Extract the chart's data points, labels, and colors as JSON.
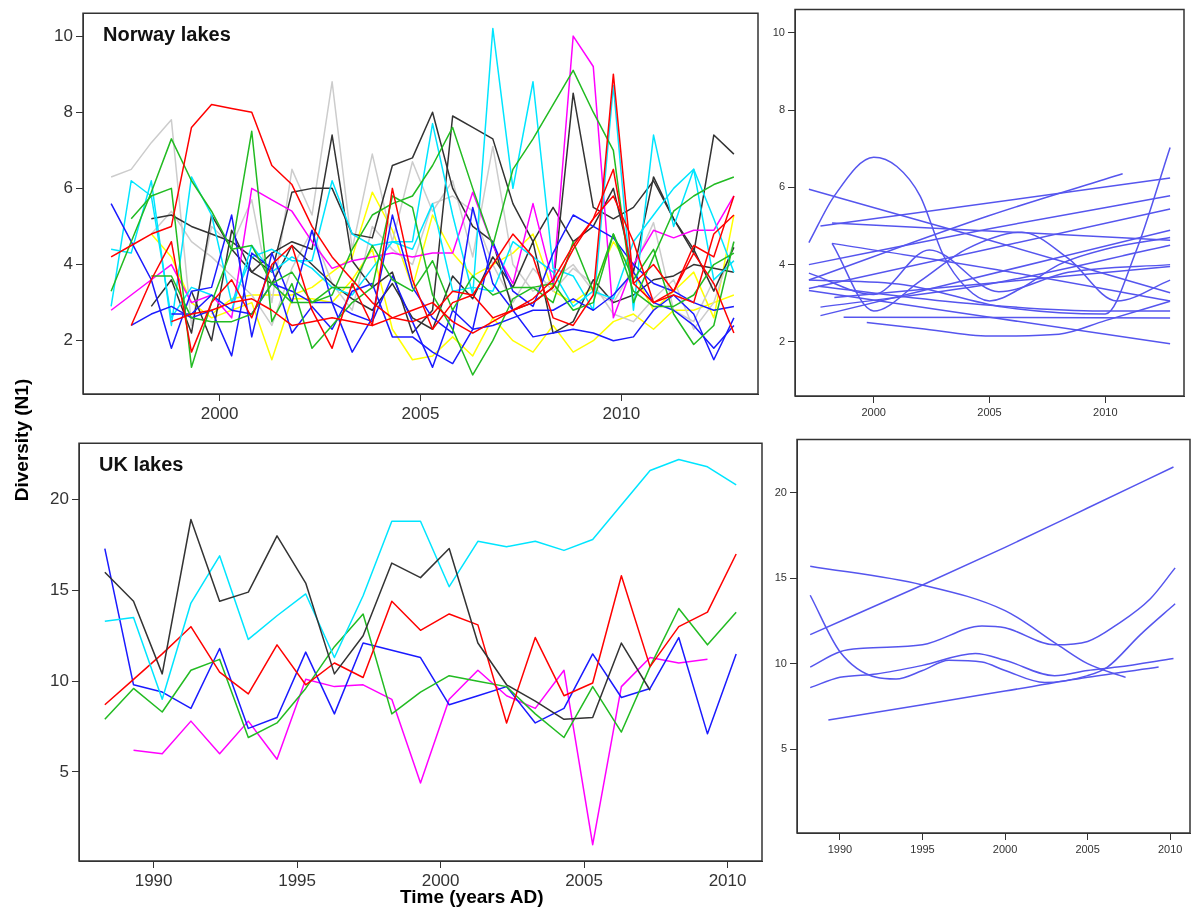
{
  "chart_data": [
    {
      "type": "line",
      "title": "Norway lakes",
      "ylabel": "Diversity (N1)",
      "xlim": [
        1996.6,
        2013.4
      ],
      "ylim": [
        0.6,
        10.6
      ],
      "xticks": [
        2000,
        2005,
        2010
      ],
      "yticks": [
        2,
        4,
        6,
        8,
        10
      ],
      "x": [
        1997.3,
        1997.8,
        1998.3,
        1998.8,
        1999.3,
        1999.8,
        2000.3,
        2000.8,
        2001.3,
        2001.8,
        2002.3,
        2002.8,
        2003.3,
        2003.8,
        2004.3,
        2004.8,
        2005.3,
        2005.8,
        2006.3,
        2006.8,
        2007.3,
        2007.8,
        2008.3,
        2008.8,
        2009.3,
        2009.8,
        2010.3,
        2010.8,
        2011.3,
        2011.8,
        2012.3,
        2012.8
      ],
      "series": [
        {
          "color": "#ff0000",
          "values": [
            4.2,
            4.5,
            4.8,
            5.0,
            7.6,
            8.2,
            8.1,
            8.0,
            6.6,
            6.1,
            5.0,
            4.2,
            3.6,
            3.0,
            2.6,
            2.5,
            2.7,
            3.3,
            3.2,
            2.6,
            2.8,
            3.0,
            3.4,
            4.4,
            5.2,
            6.5,
            3.5,
            3.0,
            3.3,
            4.5,
            4.2,
            5.8
          ]
        },
        {
          "color": "#ff0000",
          "values": [
            null,
            2.4,
            3.6,
            4.6,
            1.7,
            3.0,
            3.6,
            2.6,
            4.0,
            4.5,
            2.8,
            1.8,
            3.5,
            2.4,
            6.0,
            3.6,
            2.3,
            3.0,
            3.2,
            4.0,
            4.8,
            4.2,
            2.6,
            2.4,
            3.2,
            9.0,
            3.5,
            4.0,
            3.3,
            4.3,
            3.5,
            2.2
          ]
        },
        {
          "color": "#ff0000",
          "values": [
            null,
            null,
            null,
            2.5,
            2.7,
            2.8,
            3.0,
            3.1,
            2.8,
            2.4,
            2.5,
            2.6,
            2.5,
            2.4,
            2.6,
            2.8,
            3.0,
            2.5,
            2.2,
            2.5,
            2.8,
            3.1,
            3.6,
            4.5,
            5.2,
            5.8,
            4.6,
            3.0,
            3.2,
            3.0,
            4.8,
            5.3
          ]
        },
        {
          "color": "#22bb22",
          "values": [
            3.3,
            4.6,
            5.9,
            7.3,
            6.2,
            5.4,
            4.4,
            4.5,
            3.5,
            3.8,
            3.0,
            3.2,
            4.4,
            5.3,
            5.6,
            5.8,
            6.6,
            7.6,
            6.0,
            4.5,
            6.5,
            7.3,
            8.2,
            9.1,
            8.0,
            7.0,
            3.0,
            4.2,
            5.4,
            5.8,
            6.1,
            6.3
          ]
        },
        {
          "color": "#22bb22",
          "values": [
            null,
            5.2,
            5.8,
            6.0,
            1.3,
            3.0,
            4.4,
            7.5,
            2.5,
            3.5,
            1.8,
            2.4,
            3.0,
            3.4,
            5.8,
            5.5,
            3.2,
            2.3,
            1.1,
            2.0,
            3.1,
            3.4,
            3.0,
            4.6,
            3.3,
            4.8,
            3.6,
            4.4,
            2.7,
            1.9,
            2.4,
            4.6
          ]
        },
        {
          "color": "#22bb22",
          "values": [
            null,
            null,
            3.7,
            3.7,
            2.6,
            2.5,
            2.5,
            2.7,
            3.5,
            3.0,
            3.0,
            3.4,
            3.4,
            4.5,
            3.6,
            3.3,
            4.1,
            2.8,
            3.7,
            3.2,
            3.4,
            3.4,
            3.5,
            2.8,
            3.0,
            4.8,
            3.3,
            2.9,
            2.9,
            3.2,
            4.0,
            4.3
          ]
        },
        {
          "color": "#1a1aff",
          "values": [
            5.6,
            4.6,
            3.6,
            1.8,
            3.3,
            3.4,
            5.3,
            2.1,
            4.3,
            3.0,
            4.9,
            3.0,
            1.7,
            2.6,
            5.3,
            3.4,
            2.6,
            2.2,
            5.5,
            3.5,
            2.8,
            2.1,
            2.2,
            2.3,
            2.2,
            2.0,
            2.1,
            2.8,
            3.2,
            2.7,
            1.5,
            2.6
          ]
        },
        {
          "color": "#1a1aff",
          "values": [
            null,
            2.4,
            2.7,
            2.9,
            2.6,
            2.8,
            1.6,
            4.3,
            3.9,
            2.2,
            2.9,
            2.3,
            3.3,
            3.5,
            2.1,
            2.1,
            1.7,
            1.4,
            2.3,
            4.6,
            3.3,
            2.9,
            4.3,
            5.3,
            5.0,
            4.7,
            4.0,
            3.5,
            3.3,
            3.0,
            2.8,
            2.9
          ]
        },
        {
          "color": "#1a1aff",
          "values": [
            null,
            null,
            null,
            2.7,
            2.7,
            3.2,
            2.8,
            2.7,
            3.5,
            3.3,
            3.0,
            3.0,
            2.7,
            2.5,
            3.7,
            2.5,
            1.3,
            2.8,
            2.3,
            2.4,
            2.6,
            2.8,
            2.8,
            3.1,
            2.8,
            3.2,
            3.8,
            3.0,
            2.8,
            2.4,
            1.8,
            2.4
          ]
        },
        {
          "color": "#00e5ff",
          "values": [
            4.4,
            4.3,
            6.2,
            2.4,
            6.3,
            5.3,
            3.0,
            4.2,
            4.4,
            4.1,
            4.1,
            6.2,
            4.8,
            4.5,
            4.6,
            4.6,
            7.7,
            5.3,
            3.2,
            10.2,
            6.0,
            8.8,
            3.9,
            3.7,
            2.8,
            8.7,
            2.8,
            7.4,
            5.0,
            6.5,
            3.6,
            4.1
          ]
        },
        {
          "color": "#00e5ff",
          "values": [
            2.9,
            6.2,
            5.8,
            2.6,
            3.4,
            3.2,
            2.8,
            4.5,
            3.8,
            4.2,
            3.9,
            3.4,
            3.2,
            3.9,
            4.6,
            4.4,
            5.6,
            3.3,
            3.4,
            3.3,
            4.6,
            4.2,
            3.8,
            2.9,
            3.3,
            3.1,
            4.6,
            5.3,
            6.0,
            6.5,
            5.2,
            3.8
          ]
        },
        {
          "color": "#ff00ff",
          "values": [
            2.8,
            3.2,
            3.6,
            4.0,
            3.0,
            3.2,
            2.6,
            6.0,
            5.7,
            5.4,
            4.6,
            3.9,
            4.1,
            4.2,
            4.3,
            4.2,
            4.3,
            4.3,
            5.9,
            4.5,
            3.5,
            5.6,
            3.5,
            10.0,
            9.2,
            2.6,
            4.0,
            4.9,
            4.7,
            4.9,
            4.9,
            5.8
          ]
        },
        {
          "color": "#333333",
          "values": [
            null,
            null,
            5.2,
            5.3,
            5.0,
            4.8,
            4.6,
            4.2,
            3.8,
            5.9,
            6.0,
            6.0,
            4.8,
            4.7,
            6.6,
            6.8,
            8.0,
            6.0,
            5.0,
            4.6,
            2.8,
            3.0,
            3.4,
            8.5,
            5.5,
            5.2,
            5.5,
            6.2,
            5.2,
            4.4,
            3.3,
            4.45
          ]
        },
        {
          "color": "#333333",
          "values": [
            null,
            null,
            2.9,
            3.6,
            2.2,
            5.3,
            4.4,
            3.8,
            4.3,
            4.6,
            4.4,
            7.4,
            4.1,
            3.4,
            3.8,
            2.2,
            2.8,
            7.9,
            7.6,
            7.3,
            5.6,
            4.6,
            5.5,
            4.6,
            5.0,
            6.0,
            3.8,
            6.3,
            5.2,
            4.3,
            7.4,
            6.9
          ]
        },
        {
          "color": "#333333",
          "values": [
            null,
            null,
            null,
            null,
            3.3,
            2.0,
            4.9,
            3.8,
            3.5,
            4.5,
            4.0,
            3.5,
            3.1,
            2.8,
            3.5,
            2.6,
            2.3,
            3.7,
            3.1,
            4.2,
            3.4,
            4.6,
            2.2,
            2.5,
            3.6,
            3.0,
            3.2,
            3.6,
            3.7,
            4.0,
            3.9,
            3.8
          ]
        },
        {
          "color": "#cccccc",
          "values": [
            6.3,
            6.5,
            7.2,
            7.8,
            2.4,
            5.0,
            4.5,
            5.7,
            3.0,
            6.5,
            5.3,
            8.8,
            4.4,
            6.9,
            4.6,
            6.7,
            5.4,
            6.2,
            4.2,
            7.1,
            4.0,
            3.3,
            3.6,
            4.0,
            3.3,
            3.0,
            3.9,
            5.1,
            2.8,
            2.5,
            3.6,
            4.1
          ]
        },
        {
          "color": "#cccccc",
          "values": [
            null,
            null,
            4.8,
            5.4,
            4.6,
            4.2,
            3.7,
            3.2,
            2.4,
            3.9,
            4.9,
            3.5,
            2.8,
            5.0,
            4.4,
            4.0,
            5.6,
            5.8,
            5.4,
            4.0,
            3.0,
            3.9,
            3.3,
            3.9,
            3.5,
            2.7,
            2.5,
            3.1,
            3.6,
            2.3,
            3.0,
            4.6
          ]
        },
        {
          "color": "#ffff00",
          "values": [
            null,
            null,
            4.8,
            4.2,
            3.0,
            2.6,
            2.8,
            3.0,
            1.5,
            3.1,
            3.1,
            3.0,
            3.6,
            4.4,
            2.3,
            1.5,
            1.6,
            2.1,
            1.6,
            2.6,
            2.0,
            1.7,
            2.4,
            1.7,
            2.0,
            2.5,
            2.7,
            2.3,
            2.8,
            2.8,
            3.0,
            3.2
          ]
        },
        {
          "color": "#ffff00",
          "values": [
            null,
            null,
            null,
            null,
            null,
            2.7,
            3.1,
            3.2,
            3.2,
            3.2,
            3.4,
            3.8,
            4.2,
            5.9,
            4.9,
            3.4,
            5.3,
            4.3,
            3.7,
            4.0,
            4.3,
            4.8,
            3.3,
            3.0,
            3.4,
            4.6,
            3.8,
            2.8,
            3.3,
            3.8,
            2.6,
            5.3
          ]
        }
      ]
    },
    {
      "type": "line",
      "xlim": [
        1996.6,
        2013.4
      ],
      "ylim": [
        0.6,
        10.6
      ],
      "xticks": [
        2000,
        2005,
        2010
      ],
      "yticks": [
        2,
        4,
        6,
        8,
        10
      ],
      "series": [
        {
          "color": "#5555ee",
          "x": [
            1997.2,
            1998.3,
            2000,
            2001,
            2002,
            2003,
            2004,
            2005,
            2006.4,
            2008,
            2010,
            2012.8
          ],
          "values": [
            4.57,
            5.78,
            6.78,
            6.54,
            5.78,
            4.25,
            3.4,
            3.06,
            3.4,
            4.0,
            4.4,
            4.7
          ]
        },
        {
          "color": "#5555ee",
          "x": [
            1997.2,
            2005,
            2012.8
          ],
          "values": [
            5.95,
            4.63,
            3.27
          ]
        },
        {
          "color": "#5555ee",
          "x": [
            1997.7,
            2012.8
          ],
          "values": [
            5.0,
            6.24
          ]
        },
        {
          "color": "#5555ee",
          "x": [
            1997.2,
            2005,
            2010.75
          ],
          "values": [
            3.6,
            5.27,
            6.35
          ]
        },
        {
          "color": "#5555ee",
          "x": [
            1997.2,
            2005,
            2012.8
          ],
          "values": [
            4.0,
            4.93,
            5.78
          ]
        },
        {
          "color": "#5555ee",
          "x": [
            1997.2,
            2012.8
          ],
          "values": [
            3.38,
            5.44
          ]
        },
        {
          "color": "#5555ee",
          "x": [
            1998.2,
            2012.8
          ],
          "values": [
            5.08,
            4.63
          ]
        },
        {
          "color": "#5555ee",
          "x": [
            1998.2,
            2005,
            2012.8
          ],
          "values": [
            4.55,
            3.9,
            3.06
          ]
        },
        {
          "color": "#5555ee",
          "x": [
            1997.7,
            2012.8
          ],
          "values": [
            2.68,
            4.89
          ]
        },
        {
          "color": "#5555ee",
          "x": [
            1997.7,
            2005,
            2012.8
          ],
          "values": [
            2.9,
            3.5,
            4.5
          ]
        },
        {
          "color": "#5555ee",
          "x": [
            1998.7,
            2012.8
          ],
          "values": [
            2.64,
            2.62
          ]
        },
        {
          "color": "#5555ee",
          "x": [
            1999.7,
            2002,
            2005,
            2008,
            2010,
            2012.8
          ],
          "values": [
            2.5,
            2.35,
            2.15,
            2.2,
            2.55,
            3.05
          ]
        },
        {
          "color": "#5555ee",
          "x": [
            1997.2,
            2012.8
          ],
          "values": [
            3.33,
            1.95
          ]
        },
        {
          "color": "#5555ee",
          "x": [
            1998.2,
            2000,
            2002,
            2004,
            2006.4,
            2008.4,
            2010.5,
            2012.8
          ],
          "values": [
            4.55,
            2.8,
            3.57,
            4.4,
            4.84,
            4.16,
            3.06,
            3.6
          ]
        },
        {
          "color": "#5555ee",
          "x": [
            1997.2,
            2000,
            2002.4,
            2005.4,
            2008.4,
            2012.8
          ],
          "values": [
            3.78,
            3.23,
            4.38,
            3.3,
            3.8,
            4.0
          ]
        },
        {
          "color": "#5555ee",
          "x": [
            1997.2,
            2001.3,
            2005.6,
            2010,
            2011.3,
            2012.8
          ],
          "values": [
            3.6,
            3.48,
            2.9,
            2.72,
            4.3,
            7.03
          ]
        },
        {
          "color": "#5555ee",
          "x": [
            1997.6,
            2004,
            2009.8,
            2012.8
          ],
          "values": [
            3.44,
            3.0,
            2.8,
            2.8
          ]
        },
        {
          "color": "#5555ee",
          "x": [
            1998.3,
            2012.8
          ],
          "values": [
            3.15,
            3.95
          ]
        }
      ]
    },
    {
      "type": "line",
      "title": "UK lakes",
      "xlabel": "Time (years AD)",
      "xlim": [
        1987.4,
        2011.2
      ],
      "ylim": [
        0.1,
        23.1
      ],
      "xticks": [
        1990,
        1995,
        2000,
        2005,
        2010
      ],
      "yticks": [
        5,
        10,
        15,
        20
      ],
      "x": [
        1988.3,
        1989.3,
        1990.3,
        1991.3,
        1992.3,
        1993.3,
        1994.3,
        1995.3,
        1996.3,
        1997.3,
        1998.3,
        1999.3,
        2000.3,
        2001.3,
        2002.3,
        2003.3,
        2004.3,
        2005.3,
        2006.3,
        2007.3,
        2008.3,
        2009.3,
        2010.3
      ],
      "series": [
        {
          "color": "#333333",
          "values": [
            16.0,
            14.4,
            10.4,
            18.9,
            14.4,
            14.9,
            18.0,
            15.4,
            10.4,
            12.5,
            16.5,
            15.7,
            17.3,
            12.1,
            9.8,
            8.9,
            7.9,
            8.0,
            12.1,
            9.5,
            null,
            null,
            null
          ]
        },
        {
          "color": "#00e5ff",
          "values": [
            13.3,
            13.5,
            9.0,
            14.3,
            16.9,
            12.3,
            13.6,
            14.8,
            11.3,
            14.7,
            18.8,
            18.8,
            15.2,
            17.7,
            17.4,
            17.7,
            17.2,
            17.8,
            19.7,
            21.6,
            22.2,
            21.8,
            20.8
          ]
        },
        {
          "color": "#ff0000",
          "values": [
            8.7,
            10.1,
            11.5,
            13.0,
            10.5,
            9.3,
            12.0,
            9.8,
            11.0,
            10.2,
            14.4,
            12.8,
            13.7,
            13.1,
            7.7,
            12.4,
            9.2,
            9.9,
            15.8,
            10.8,
            13.0,
            13.8,
            17.0
          ]
        },
        {
          "color": "#22bb22",
          "values": [
            7.9,
            9.6,
            8.3,
            10.6,
            11.2,
            6.9,
            7.7,
            9.6,
            11.9,
            13.7,
            8.2,
            9.4,
            10.3,
            10.0,
            9.7,
            8.2,
            6.9,
            9.7,
            7.2,
            10.8,
            14.0,
            12.0,
            13.8
          ]
        },
        {
          "color": "#1a1aff",
          "values": [
            17.3,
            9.8,
            9.4,
            8.5,
            11.8,
            7.4,
            8.0,
            11.6,
            8.2,
            12.1,
            11.7,
            11.3,
            8.7,
            9.2,
            9.7,
            7.7,
            8.5,
            11.5,
            9.1,
            9.6,
            12.4,
            7.1,
            11.5
          ]
        },
        {
          "color": "#ff00ff",
          "values": [
            null,
            6.2,
            6.0,
            7.8,
            6.0,
            7.8,
            5.7,
            10.1,
            9.7,
            9.8,
            9.0,
            4.4,
            9.0,
            10.6,
            9.2,
            8.5,
            10.6,
            1.0,
            9.7,
            11.3,
            11.0,
            11.2,
            null
          ]
        }
      ]
    },
    {
      "type": "line",
      "xlim": [
        1987.4,
        2011.2
      ],
      "ylim": [
        0.1,
        23.1
      ],
      "xticks": [
        1990,
        1995,
        2000,
        2005,
        2010
      ],
      "yticks": [
        5,
        10,
        15,
        20
      ],
      "series": [
        {
          "color": "#5555ee",
          "x": [
            1988.2,
            1995,
            2000,
            2005,
            2010.2
          ],
          "values": [
            11.7,
            14.6,
            16.8,
            19.1,
            21.5
          ]
        },
        {
          "color": "#5555ee",
          "x": [
            1988.2,
            1995,
            2000,
            2003.2,
            2005,
            2007.3
          ],
          "values": [
            15.7,
            14.6,
            13.1,
            11.1,
            10.0,
            9.2
          ]
        },
        {
          "color": "#5555ee",
          "x": [
            1988.2,
            1990,
            1992.2,
            1993.4,
            1995,
            1996.6,
            1998.6,
            2000,
            2002.4,
            2005,
            2006.2,
            2008.2,
            2010.3
          ],
          "values": [
            14.0,
            10.7,
            9.2,
            9.1,
            9.6,
            10.2,
            10.1,
            9.6,
            8.9,
            9.3,
            9.8,
            11.7,
            13.5
          ]
        },
        {
          "color": "#5555ee",
          "x": [
            1988.2,
            1990,
            1991.4,
            1995,
            1998.6,
            2000,
            2003,
            2005,
            2006.8,
            2008.8,
            2010.3
          ],
          "values": [
            9.8,
            10.7,
            10.9,
            11.1,
            12.2,
            12.1,
            11.1,
            11.3,
            12.3,
            13.8,
            15.6
          ]
        },
        {
          "color": "#5555ee",
          "x": [
            1988.2,
            1990,
            1992.2,
            1995,
            1998.2,
            2000,
            2003,
            2005,
            2006.8,
            2010.2
          ],
          "values": [
            8.6,
            9.2,
            9.4,
            9.9,
            10.6,
            10.2,
            9.3,
            9.6,
            9.8,
            10.3
          ]
        },
        {
          "color": "#5555ee",
          "x": [
            1989.3,
            1995,
            2000,
            2005,
            2009.3
          ],
          "values": [
            6.7,
            7.6,
            8.4,
            9.2,
            9.8
          ]
        }
      ]
    }
  ]
}
